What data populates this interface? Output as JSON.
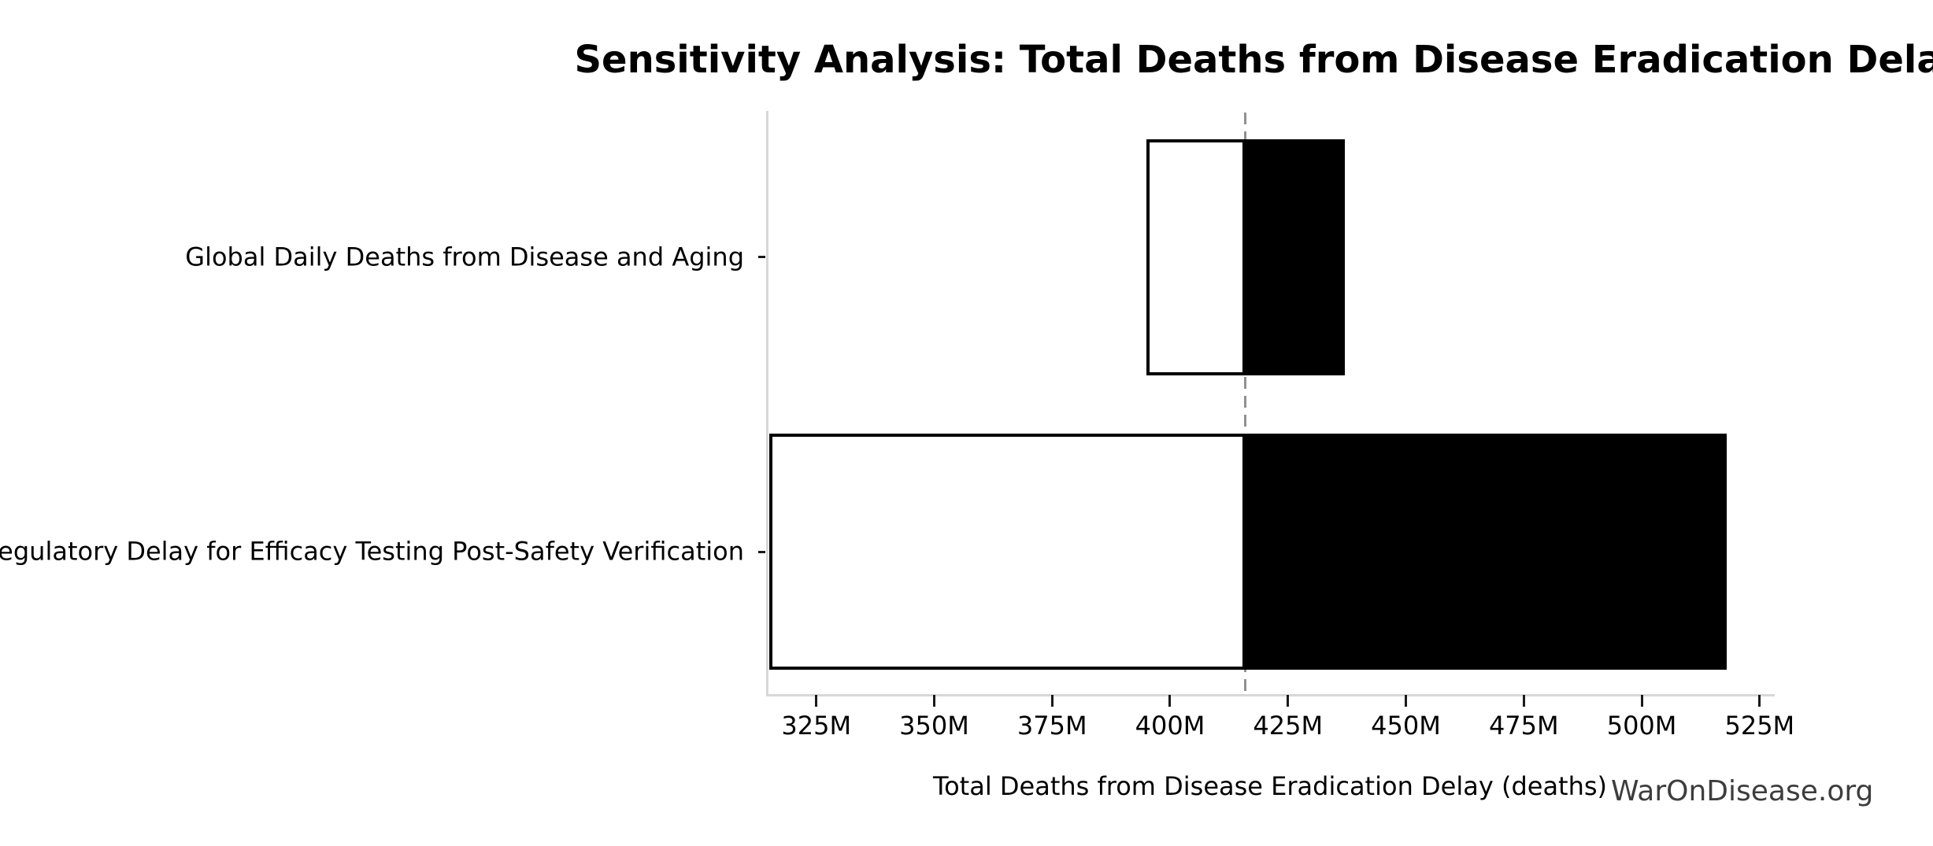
{
  "watermark": "WarOnDisease.org",
  "chart_data": {
    "type": "bar",
    "variant": "tornado-sensitivity",
    "orientation": "horizontal",
    "title": "Sensitivity Analysis: Total Deaths from Disease Eradication Delay",
    "xlabel": "Total Deaths from Disease Eradication Delay (deaths)",
    "ylabel": "",
    "baseline_value": 416,
    "xlim": [
      314.7,
      527.7
    ],
    "x_ticks": [
      325,
      350,
      375,
      400,
      425,
      450,
      475,
      500,
      525
    ],
    "x_tick_suffix": "M",
    "rows": [
      {
        "label": "Global Daily Deaths from Disease and Aging",
        "low": 395,
        "high": 437
      },
      {
        "label": "Regulatory Delay for Efficacy Testing Post-Safety Verification",
        "low": 315,
        "high": 518
      }
    ],
    "grid": false,
    "legend": "none",
    "colors": {
      "low_segment_fill": "#ffffff",
      "high_segment_fill": "#000000",
      "bar_edge": "#000000",
      "baseline_line": "#909090",
      "spine": "#d8d8d8",
      "text": "#000000",
      "watermark": "#3d3d3d"
    }
  }
}
